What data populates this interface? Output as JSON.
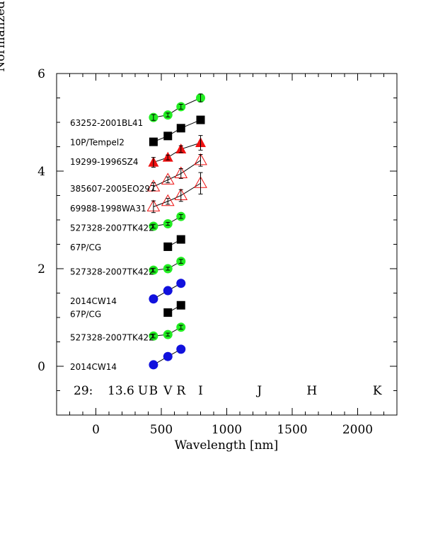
{
  "chart_data": {
    "type": "scatter",
    "xlabel": "Wavelength [nm]",
    "ylabel": "Normalized Reflectivity",
    "xlim": [
      -300,
      2300
    ],
    "ylim": [
      -1,
      6
    ],
    "xticks": [
      0,
      500,
      1000,
      1500,
      2000
    ],
    "xtick_labels": [
      "0",
      "500",
      "1000",
      "1500",
      "2000"
    ],
    "yticks": [
      0,
      2,
      4,
      6
    ],
    "ytick_labels": [
      "0",
      "2",
      "4",
      "6"
    ],
    "colors": {
      "green": "#22ee22",
      "black": "#000000",
      "red": "#ee1111",
      "blue": "#1111dd",
      "open_red": "#ee1111"
    },
    "annotation": {
      "prefix_1": "29:",
      "prefix_2": "13.6",
      "bands": [
        {
          "text": "U",
          "x": 360
        },
        {
          "text": "B",
          "x": 440
        },
        {
          "text": "V",
          "x": 550
        },
        {
          "text": "R",
          "x": 650
        },
        {
          "text": "I",
          "x": 800
        },
        {
          "text": "J",
          "x": 1250
        },
        {
          "text": "H",
          "x": 1650
        },
        {
          "text": "K",
          "x": 2150
        }
      ]
    },
    "series": [
      {
        "name": "63252-2001BL41",
        "label_y": 5.0,
        "marker": "circle",
        "color": "green",
        "points": [
          {
            "x": 440,
            "y": 5.1,
            "err": 0.06
          },
          {
            "x": 550,
            "y": 5.15,
            "err": 0.04
          },
          {
            "x": 650,
            "y": 5.32,
            "err": 0.05
          },
          {
            "x": 800,
            "y": 5.5,
            "err": 0.08
          }
        ]
      },
      {
        "name": "10P/Tempel2",
        "label_y": 4.6,
        "marker": "square",
        "color": "black",
        "points": [
          {
            "x": 440,
            "y": 4.6,
            "err": 0.0
          },
          {
            "x": 550,
            "y": 4.72,
            "err": 0.0
          },
          {
            "x": 650,
            "y": 4.88,
            "err": 0.0
          },
          {
            "x": 800,
            "y": 5.05,
            "err": 0.0
          }
        ]
      },
      {
        "name": "19299-1996SZ4",
        "label_y": 4.2,
        "marker": "triangle",
        "color": "red",
        "points": [
          {
            "x": 440,
            "y": 4.18,
            "err": 0.1
          },
          {
            "x": 550,
            "y": 4.28,
            "err": 0.05
          },
          {
            "x": 650,
            "y": 4.45,
            "err": 0.07
          },
          {
            "x": 800,
            "y": 4.58,
            "err": 0.15
          }
        ]
      },
      {
        "name": "385607-2005EO297",
        "label_y": 3.65,
        "marker": "triangle-open",
        "color": "open_red",
        "points": [
          {
            "x": 440,
            "y": 3.68,
            "err": 0.08
          },
          {
            "x": 550,
            "y": 3.82,
            "err": 0.06
          },
          {
            "x": 650,
            "y": 3.95,
            "err": 0.1
          },
          {
            "x": 800,
            "y": 4.22,
            "err": 0.12
          }
        ]
      },
      {
        "name": "69988-1998WA31",
        "label_y": 3.25,
        "marker": "triangle-open",
        "color": "open_red",
        "points": [
          {
            "x": 440,
            "y": 3.27,
            "err": 0.12
          },
          {
            "x": 550,
            "y": 3.38,
            "err": 0.06
          },
          {
            "x": 650,
            "y": 3.5,
            "err": 0.12
          },
          {
            "x": 800,
            "y": 3.75,
            "err": 0.22
          }
        ]
      },
      {
        "name": "527328-2007TK422",
        "label_y": 2.85,
        "marker": "circle",
        "color": "green",
        "points": [
          {
            "x": 440,
            "y": 2.87,
            "err": 0.04
          },
          {
            "x": 550,
            "y": 2.92,
            "err": 0.03
          },
          {
            "x": 650,
            "y": 3.07,
            "err": 0.04
          }
        ]
      },
      {
        "name": "67P/CG",
        "label_y": 2.45,
        "marker": "square",
        "color": "black",
        "points": [
          {
            "x": 550,
            "y": 2.45,
            "err": 0.0
          },
          {
            "x": 650,
            "y": 2.6,
            "err": 0.0
          }
        ]
      },
      {
        "name": "527328-2007TK422",
        "label_y": 1.95,
        "marker": "circle",
        "color": "green",
        "points": [
          {
            "x": 440,
            "y": 1.97,
            "err": 0.04
          },
          {
            "x": 550,
            "y": 2.0,
            "err": 0.03
          },
          {
            "x": 650,
            "y": 2.15,
            "err": 0.04
          }
        ]
      },
      {
        "name": "2014CW14",
        "label_y": 1.35,
        "marker": "circle",
        "color": "blue",
        "points": [
          {
            "x": 440,
            "y": 1.38,
            "err": 0.0
          },
          {
            "x": 550,
            "y": 1.55,
            "err": 0.0
          },
          {
            "x": 650,
            "y": 1.7,
            "err": 0.0
          }
        ]
      },
      {
        "name": "67P/CG",
        "label_y": 1.08,
        "marker": "square",
        "color": "black",
        "points": [
          {
            "x": 550,
            "y": 1.1,
            "err": 0.0
          },
          {
            "x": 650,
            "y": 1.25,
            "err": 0.0
          }
        ]
      },
      {
        "name": "527328-2007TK422",
        "label_y": 0.6,
        "marker": "circle",
        "color": "green",
        "points": [
          {
            "x": 440,
            "y": 0.62,
            "err": 0.04
          },
          {
            "x": 550,
            "y": 0.65,
            "err": 0.03
          },
          {
            "x": 650,
            "y": 0.8,
            "err": 0.04
          }
        ]
      },
      {
        "name": "2014CW14",
        "label_y": 0.0,
        "marker": "circle",
        "color": "blue",
        "points": [
          {
            "x": 440,
            "y": 0.03,
            "err": 0.0
          },
          {
            "x": 550,
            "y": 0.2,
            "err": 0.0
          },
          {
            "x": 650,
            "y": 0.35,
            "err": 0.0
          }
        ]
      }
    ]
  }
}
